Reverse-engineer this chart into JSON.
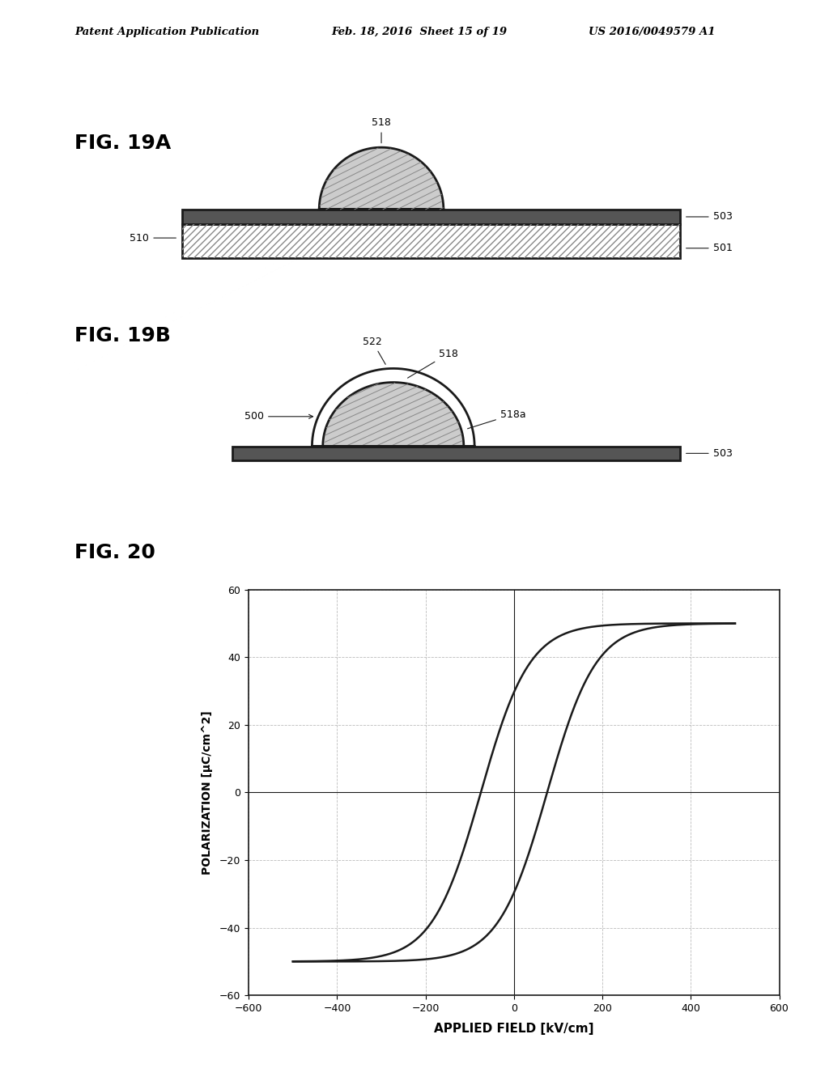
{
  "header_left": "Patent Application Publication",
  "header_middle": "Feb. 18, 2016  Sheet 15 of 19",
  "header_right": "US 2016/0049579 A1",
  "fig19a_label": "FIG. 19A",
  "fig19b_label": "FIG. 19B",
  "fig20_label": "FIG. 20",
  "plot_xlabel": "APPLIED FIELD [kV/cm]",
  "plot_ylabel": "POLARIZATION [μC/cm^2]",
  "plot_xlim": [
    -600,
    600
  ],
  "plot_ylim": [
    -60,
    60
  ],
  "plot_xticks": [
    -600,
    -400,
    -200,
    0,
    200,
    400,
    600
  ],
  "plot_yticks": [
    -60,
    -40,
    -20,
    0,
    20,
    40,
    60
  ],
  "background_color": "#ffffff",
  "line_color": "#1a1a1a"
}
